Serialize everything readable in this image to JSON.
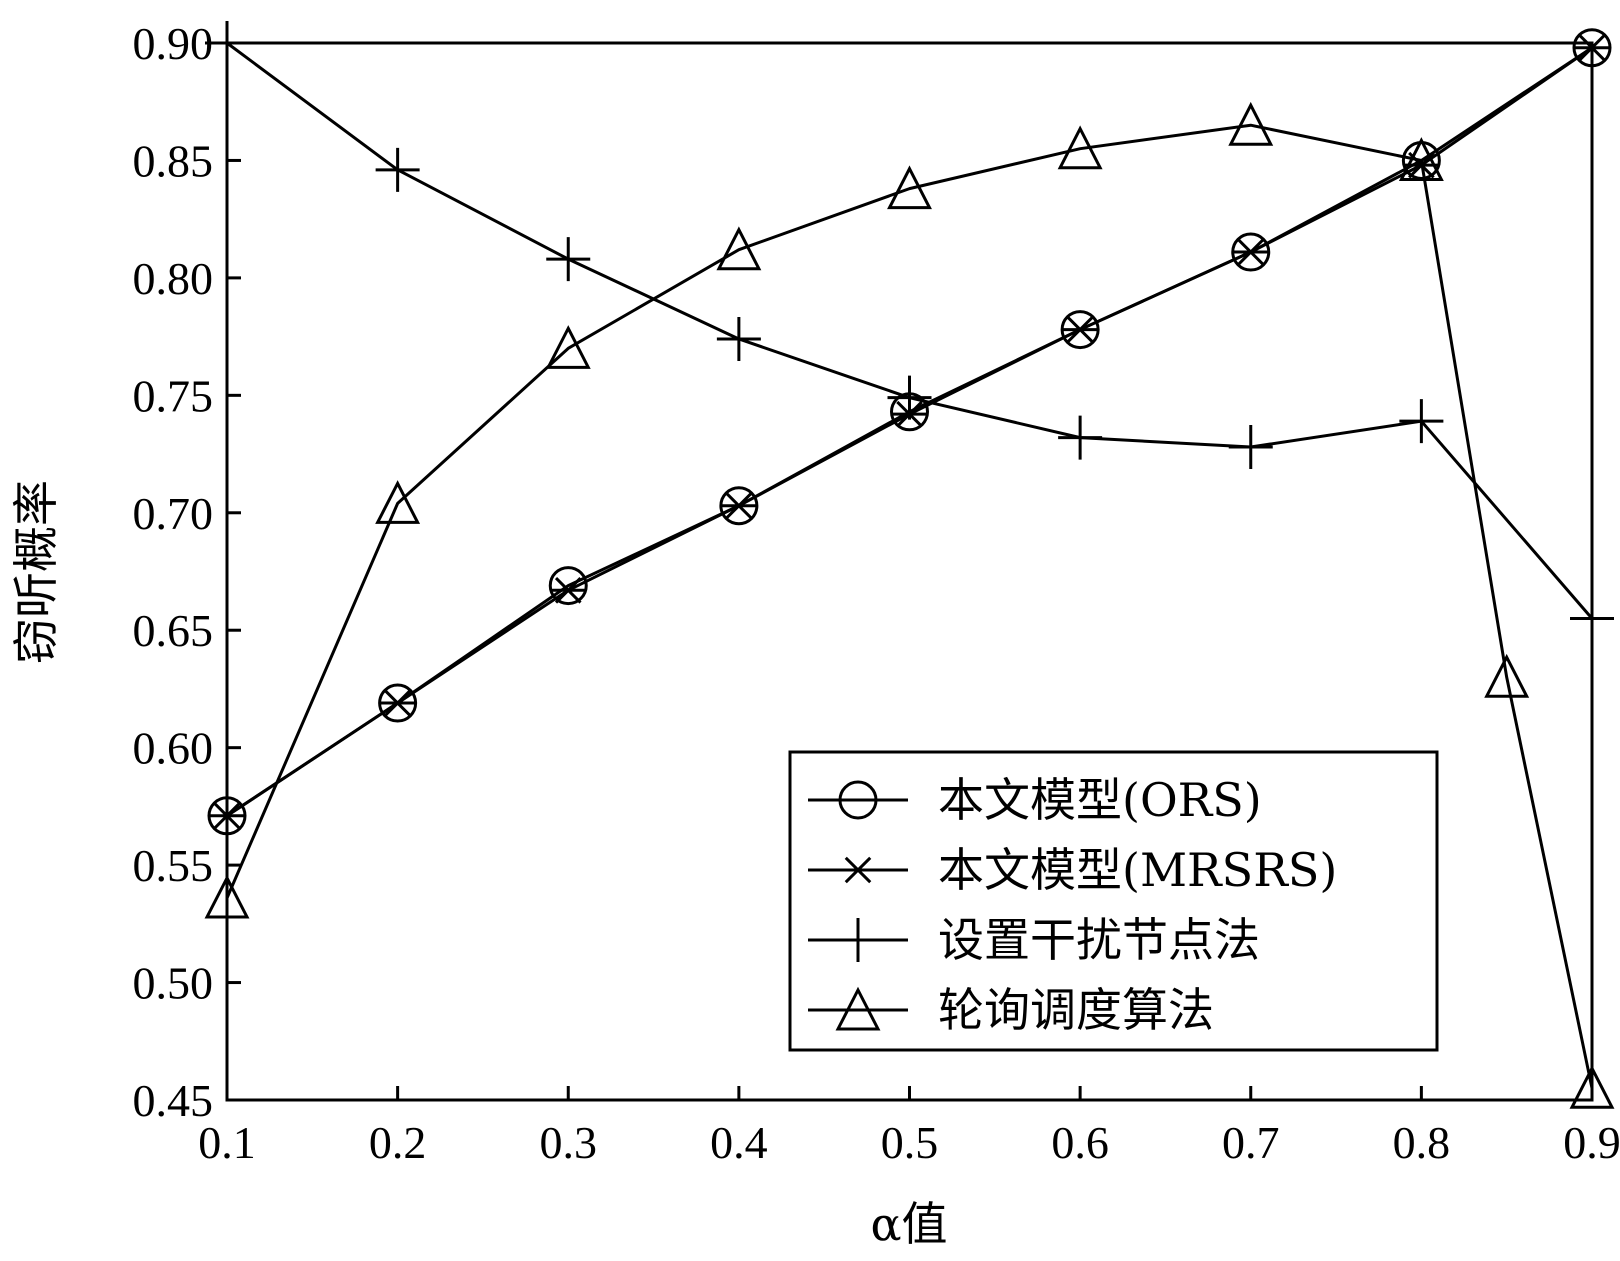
{
  "chart_data": {
    "type": "line",
    "xlabel": "α值",
    "ylabel": "窃听概率",
    "xlim": [
      0.1,
      0.9
    ],
    "ylim": [
      0.45,
      0.9
    ],
    "x_ticks": [
      "0.1",
      "0.2",
      "0.3",
      "0.4",
      "0.5",
      "0.6",
      "0.7",
      "0.8",
      "0.9"
    ],
    "y_ticks": [
      "0.45",
      "0.50",
      "0.55",
      "0.60",
      "0.65",
      "0.70",
      "0.75",
      "0.80",
      "0.85",
      "0.90"
    ],
    "grid": false,
    "legend_position": "bottom-right",
    "series": [
      {
        "name": "本文模型(ORS)",
        "marker": "circle",
        "points": [
          [
            0.1,
            0.571
          ],
          [
            0.2,
            0.619
          ],
          [
            0.3,
            0.669
          ],
          [
            0.4,
            0.703
          ],
          [
            0.5,
            0.743
          ],
          [
            0.6,
            0.778
          ],
          [
            0.7,
            0.811
          ],
          [
            0.8,
            0.85
          ],
          [
            0.9,
            0.898
          ]
        ]
      },
      {
        "name": "本文模型(MRSRS)",
        "marker": "asterisk",
        "points": [
          [
            0.1,
            0.571
          ],
          [
            0.2,
            0.619
          ],
          [
            0.3,
            0.667
          ],
          [
            0.4,
            0.703
          ],
          [
            0.5,
            0.742
          ],
          [
            0.6,
            0.778
          ],
          [
            0.7,
            0.811
          ],
          [
            0.8,
            0.848
          ],
          [
            0.9,
            0.898
          ]
        ]
      },
      {
        "name": "设置干扰节点法",
        "marker": "plus",
        "points": [
          [
            0.1,
            0.9
          ],
          [
            0.2,
            0.846
          ],
          [
            0.3,
            0.808
          ],
          [
            0.4,
            0.774
          ],
          [
            0.5,
            0.749
          ],
          [
            0.6,
            0.732
          ],
          [
            0.7,
            0.728
          ],
          [
            0.8,
            0.739
          ],
          [
            0.9,
            0.655
          ]
        ]
      },
      {
        "name": "轮询调度算法",
        "marker": "triangle",
        "points": [
          [
            0.1,
            0.536
          ],
          [
            0.2,
            0.704
          ],
          [
            0.3,
            0.77
          ],
          [
            0.4,
            0.812
          ],
          [
            0.5,
            0.838
          ],
          [
            0.6,
            0.855
          ],
          [
            0.7,
            0.865
          ],
          [
            0.8,
            0.85
          ],
          [
            0.85,
            0.63
          ],
          [
            0.9,
            0.455
          ]
        ]
      }
    ]
  }
}
